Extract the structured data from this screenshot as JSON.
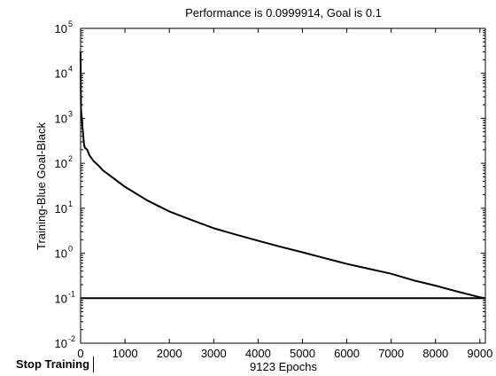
{
  "stop_button": {
    "label": "Stop Training"
  },
  "chart_data": {
    "type": "line",
    "title": "Performance is 0.0999914, Goal is 0.1",
    "xlabel": "9123 Epochs",
    "ylabel": "Training-Blue  Goal-Black",
    "xlim": [
      0,
      9123
    ],
    "ylim": [
      0.01,
      100000
    ],
    "yscale": "log",
    "grid": false,
    "x_ticks": [
      0,
      1000,
      2000,
      3000,
      4000,
      5000,
      6000,
      7000,
      8000,
      9000
    ],
    "y_ticks": [
      {
        "value": 0.01,
        "base": "10",
        "exp": "-2"
      },
      {
        "value": 0.1,
        "base": "10",
        "exp": "-1"
      },
      {
        "value": 1,
        "base": "10",
        "exp": "0"
      },
      {
        "value": 10,
        "base": "10",
        "exp": "1"
      },
      {
        "value": 100,
        "base": "10",
        "exp": "2"
      },
      {
        "value": 1000,
        "base": "10",
        "exp": "3"
      },
      {
        "value": 10000,
        "base": "10",
        "exp": "4"
      },
      {
        "value": 100000,
        "base": "10",
        "exp": "5"
      }
    ],
    "series": [
      {
        "role": "training",
        "color": "#000000",
        "x": [
          0,
          5,
          10,
          20,
          40,
          60,
          80,
          100,
          150,
          200,
          300,
          400,
          500,
          700,
          1000,
          1500,
          2000,
          2500,
          3000,
          3500,
          4000,
          4500,
          5000,
          5500,
          6000,
          6500,
          7000,
          7500,
          8000,
          8500,
          9000,
          9123
        ],
        "y": [
          30000,
          5000,
          1500,
          1200,
          700,
          400,
          250,
          220,
          200,
          150,
          110,
          90,
          70,
          50,
          30,
          15,
          8.5,
          5.5,
          3.6,
          2.6,
          1.9,
          1.4,
          1.05,
          0.78,
          0.58,
          0.45,
          0.35,
          0.25,
          0.19,
          0.14,
          0.105,
          0.0999914
        ]
      },
      {
        "role": "goal",
        "color": "#000000",
        "x": [
          0,
          9123
        ],
        "y": [
          0.1,
          0.1
        ]
      }
    ]
  }
}
